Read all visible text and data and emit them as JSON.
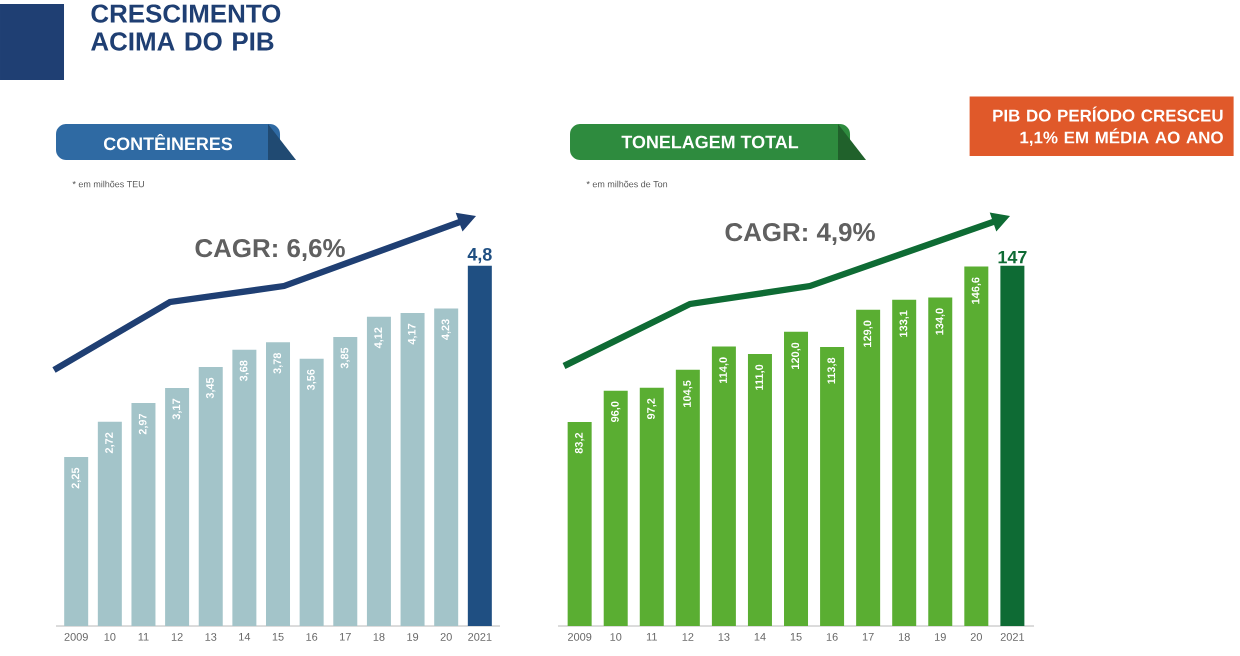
{
  "chart_data": [
    {
      "type": "bar",
      "title": "CONTÊINERES",
      "subtitle": "* em milhões TEU",
      "annotations": [
        "CRESCIMENTO ACIMA DO PIB",
        "CAGR: 6,6%"
      ],
      "categories": [
        "2009",
        "10",
        "11",
        "12",
        "13",
        "14",
        "15",
        "16",
        "17",
        "18",
        "19",
        "20",
        "2021"
      ],
      "values": [
        2.25,
        2.72,
        2.97,
        3.17,
        3.45,
        3.68,
        3.78,
        3.56,
        3.85,
        4.12,
        4.17,
        4.23,
        4.8
      ],
      "value_labels": [
        "2,25",
        "2,72",
        "2,97",
        "3,17",
        "3,45",
        "3,68",
        "3,78",
        "3,56",
        "3,85",
        "4,12",
        "4,17",
        "4,23",
        "4,8"
      ],
      "colors": [
        "#a3c4c9",
        "#a3c4c9",
        "#a3c4c9",
        "#a3c4c9",
        "#a3c4c9",
        "#a3c4c9",
        "#a3c4c9",
        "#a3c4c9",
        "#a3c4c9",
        "#a3c4c9",
        "#a3c4c9",
        "#a3c4c9",
        "#1f4f82"
      ],
      "tick_labels": "x"
    },
    {
      "type": "bar",
      "title": "TONELAGEM TOTAL",
      "subtitle": "* em milhões de Ton",
      "annotations": [
        "CAGR: 4,9%",
        "PIB DO PERÍODO CRESCEU 1,1% EM MÉDIA AO ANO"
      ],
      "categories": [
        "2009",
        "10",
        "11",
        "12",
        "13",
        "14",
        "15",
        "16",
        "17",
        "18",
        "19",
        "20",
        "2021"
      ],
      "values": [
        83.2,
        96.0,
        97.2,
        104.5,
        114.0,
        111.0,
        120.0,
        113.8,
        129.0,
        133.1,
        134.0,
        146.6,
        147
      ],
      "value_labels": [
        "83,2",
        "96,0",
        "97,2",
        "104,5",
        "114,0",
        "111,0",
        "120,0",
        "113,8",
        "129,0",
        "133,1",
        "134,0",
        "146,6",
        "147"
      ],
      "colors": [
        "#5aae32",
        "#5aae32",
        "#5aae32",
        "#5aae32",
        "#5aae32",
        "#5aae32",
        "#5aae32",
        "#5aae32",
        "#5aae32",
        "#5aae32",
        "#5aae32",
        "#5aae32",
        "#0e6b34"
      ],
      "tick_labels": "x"
    }
  ]
}
